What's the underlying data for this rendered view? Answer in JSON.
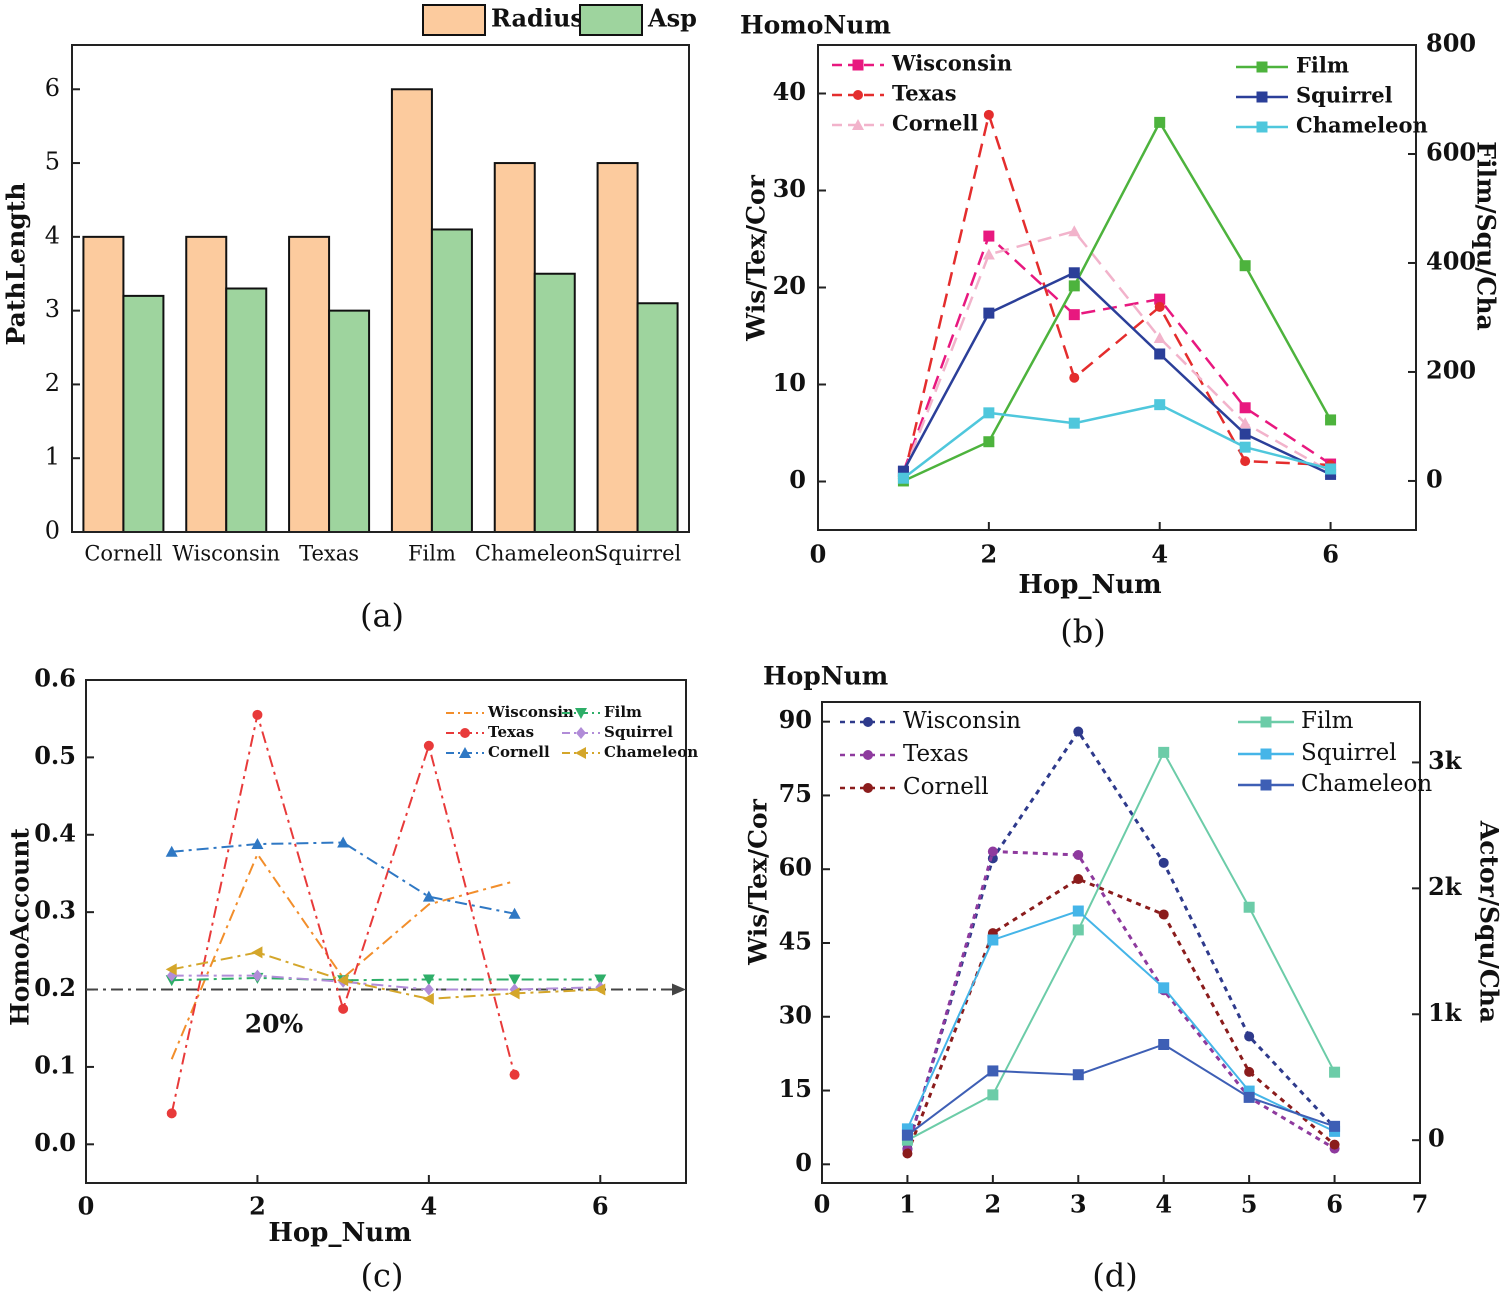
{
  "chart_data": [
    {
      "panel": "a",
      "type": "bar",
      "caption": "(a)",
      "xlabel": "",
      "ylabel": "PathLength",
      "ylim": [
        0,
        6.6
      ],
      "yticks": [
        "0",
        "1",
        "2",
        "3",
        "4",
        "5",
        "6"
      ],
      "legend_position": "top-right",
      "categories": [
        "Cornell",
        "Wisconsin",
        "Texas",
        "Film",
        "Chameleon",
        "Squirrel"
      ],
      "series": [
        {
          "name": "Radius",
          "color": "#FCCB9E",
          "values": [
            4,
            4,
            4,
            6,
            5,
            5
          ]
        },
        {
          "name": "Asp",
          "color": "#9ED49E",
          "values": [
            3.2,
            3.3,
            3.0,
            4.1,
            3.5,
            3.1
          ]
        }
      ]
    },
    {
      "panel": "b",
      "type": "line",
      "caption": "(b)",
      "title": "HomoNum",
      "xlabel": "Hop_Num",
      "ylabel": "Wis/Tex/Cor",
      "y2label": "Film/Squ/Cha",
      "xlim": [
        0,
        7
      ],
      "ylim": [
        -5,
        45
      ],
      "y2lim": [
        -90,
        800
      ],
      "xticks": [
        "0",
        "2",
        "4",
        "6"
      ],
      "yticks": [
        "0",
        "10",
        "20",
        "30",
        "40"
      ],
      "y2ticks": [
        "0",
        "200",
        "400",
        "600",
        "800"
      ],
      "x": [
        1,
        2,
        3,
        4,
        5,
        6
      ],
      "series": [
        {
          "name": "Wisconsin",
          "axis": "left",
          "style": "dashed",
          "marker": "square",
          "color": "#E8187F",
          "values": [
            1.0,
            25.3,
            17.2,
            18.8,
            7.6,
            1.8
          ]
        },
        {
          "name": "Texas",
          "axis": "left",
          "style": "dashed",
          "marker": "circle",
          "color": "#E42D2D",
          "values": [
            0.3,
            37.8,
            10.7,
            18.0,
            2.1,
            1.7
          ]
        },
        {
          "name": "Cornell",
          "axis": "left",
          "style": "dashed",
          "marker": "triangle",
          "color": "#F2B3CB",
          "values": [
            0.8,
            23.4,
            25.8,
            14.8,
            6.0,
            1.0
          ]
        },
        {
          "name": "Film",
          "axis": "right",
          "style": "solid",
          "marker": "square",
          "color": "#4DB33D",
          "values": [
            0,
            72,
            358,
            658,
            395,
            112
          ]
        },
        {
          "name": "Squirrel",
          "axis": "right",
          "style": "solid",
          "marker": "square",
          "color": "#2B3F99",
          "values": [
            18,
            308,
            382,
            233,
            86,
            12
          ]
        },
        {
          "name": "Chameleon",
          "axis": "right",
          "style": "solid",
          "marker": "square",
          "color": "#4FC7DC",
          "values": [
            5,
            125,
            106,
            140,
            62,
            22
          ]
        }
      ]
    },
    {
      "panel": "c",
      "type": "line",
      "caption": "(c)",
      "xlabel": "Hop_Num",
      "ylabel": "HomoAccount",
      "xlim": [
        0,
        7
      ],
      "ylim": [
        -0.05,
        0.6
      ],
      "xticks": [
        "0",
        "2",
        "4",
        "6"
      ],
      "yticks": [
        "0.0",
        "0.1",
        "0.2",
        "0.3",
        "0.4",
        "0.5",
        "0.6"
      ],
      "annotation": "20%",
      "reference_line": 0.2,
      "x": [
        1,
        2,
        3,
        4,
        5,
        6
      ],
      "series": [
        {
          "name": "Wisconsin",
          "style": "dashdot",
          "marker": "none",
          "color": "#F28E2B",
          "values": [
            0.11,
            0.375,
            0.215,
            0.31,
            0.34,
            null
          ]
        },
        {
          "name": "Texas",
          "style": "dashdot",
          "marker": "circle",
          "color": "#E83A3A",
          "values": [
            0.04,
            0.555,
            0.175,
            0.515,
            0.09,
            null
          ]
        },
        {
          "name": "Cornell",
          "style": "dashdot",
          "marker": "triangle",
          "color": "#2F78C4",
          "values": [
            0.378,
            0.388,
            0.39,
            0.32,
            0.298,
            null
          ]
        },
        {
          "name": "Film",
          "style": "dashdot",
          "marker": "triangle-down",
          "color": "#2EAE68",
          "values": [
            0.212,
            0.215,
            0.212,
            0.213,
            0.213,
            0.213
          ]
        },
        {
          "name": "Squirrel",
          "style": "dashdot",
          "marker": "diamond",
          "color": "#B18CD8",
          "values": [
            0.218,
            0.218,
            0.21,
            0.2,
            0.2,
            0.203
          ]
        },
        {
          "name": "Chameleon",
          "style": "dashdot",
          "marker": "triangle-left",
          "color": "#D4A62A",
          "values": [
            0.226,
            0.248,
            0.212,
            0.188,
            0.195,
            0.2
          ]
        }
      ]
    },
    {
      "panel": "d",
      "type": "line",
      "caption": "(d)",
      "title": "HopNum",
      "xlabel": "",
      "ylabel": "Wis/Tex/Cor",
      "y2label": "Actor/Squ/Cha",
      "xlim": [
        0,
        7
      ],
      "ylim": [
        -3.8,
        94
      ],
      "y2lim": [
        -340,
        3480
      ],
      "xticks": [
        "0",
        "1",
        "2",
        "3",
        "4",
        "5",
        "6",
        "7"
      ],
      "yticks": [
        "0",
        "15",
        "30",
        "45",
        "60",
        "75",
        "90"
      ],
      "y2ticks": [
        "0",
        "1k",
        "2k",
        "3k"
      ],
      "x": [
        1,
        2,
        3,
        4,
        5,
        6
      ],
      "series": [
        {
          "name": "Wisconsin",
          "axis": "left",
          "style": "dotted",
          "marker": "circle",
          "color": "#2E3A8C",
          "values": [
            3.2,
            62.2,
            88.0,
            61.3,
            26.0,
            7.5
          ]
        },
        {
          "name": "Texas",
          "axis": "left",
          "style": "dotted",
          "marker": "circle",
          "color": "#8E3A9E",
          "values": [
            3.0,
            63.6,
            62.9,
            35.4,
            13.6,
            3.2
          ]
        },
        {
          "name": "Cornell",
          "axis": "left",
          "style": "dotted",
          "marker": "circle",
          "color": "#8B1C1C",
          "values": [
            2.2,
            47.0,
            58.0,
            50.8,
            18.8,
            4.0
          ]
        },
        {
          "name": "Film",
          "axis": "right",
          "style": "solid",
          "marker": "square",
          "color": "#6CCCA8",
          "values": [
            0,
            360,
            1670,
            3080,
            1850,
            540
          ]
        },
        {
          "name": "Squirrel",
          "axis": "right",
          "style": "solid",
          "marker": "square",
          "color": "#45B5E8",
          "values": [
            90,
            1590,
            1820,
            1210,
            390,
            70
          ]
        },
        {
          "name": "Chameleon",
          "axis": "right",
          "style": "solid",
          "marker": "square",
          "color": "#3E5FB5",
          "values": [
            40,
            550,
            520,
            760,
            340,
            110
          ]
        }
      ]
    }
  ]
}
